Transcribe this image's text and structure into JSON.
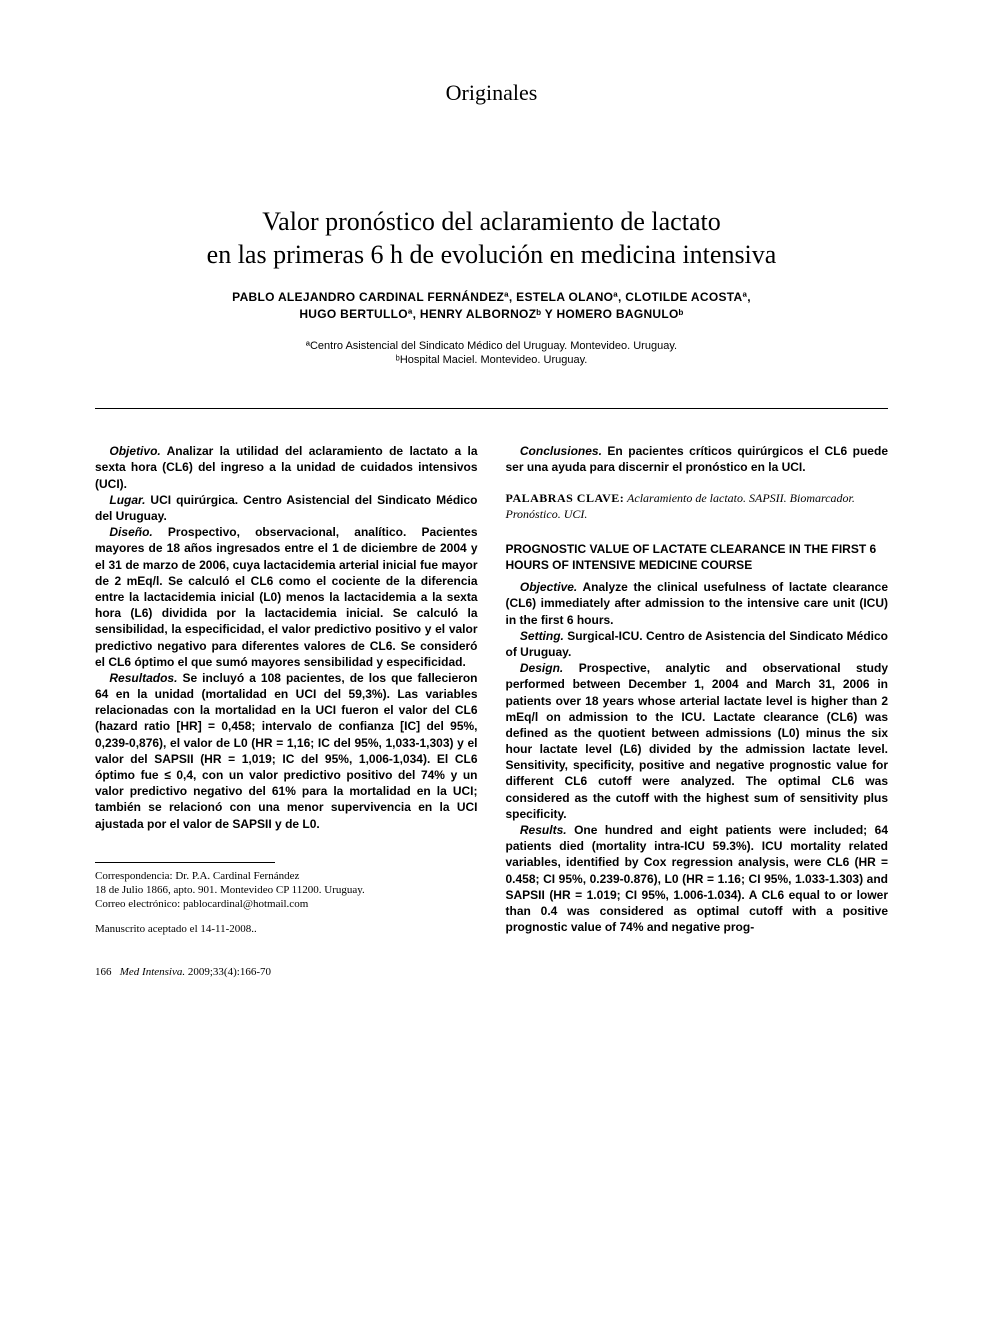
{
  "section_label": "Originales",
  "title_line1": "Valor pronóstico del aclaramiento de lactato",
  "title_line2": "en las primeras 6 h de evolución en medicina intensiva",
  "authors_line1": "PABLO ALEJANDRO CARDINAL FERNÁNDEZª, ESTELA OLANOª, CLOTILDE ACOSTAª,",
  "authors_line2": "HUGO BERTULLOª, HENRY ALBORNOZᵇ Y HOMERO BAGNULOᵇ",
  "affil_a": "ªCentro Asistencial del Sindicato Médico del Uruguay. Montevideo. Uruguay.",
  "affil_b": "ᵇHospital Maciel. Montevideo. Uruguay.",
  "es_abstract": {
    "objetivo": {
      "label": "Objetivo.",
      "text": " Analizar la utilidad del aclaramiento de lactato a la sexta hora (CL6) del ingreso a la unidad de cuidados intensivos (UCI)."
    },
    "lugar": {
      "label": "Lugar.",
      "text": " UCI quirúrgica. Centro Asistencial del Sindicato Médico del Uruguay."
    },
    "diseno": {
      "label": "Diseño.",
      "text": " Prospectivo, observacional, analítico. Pacientes mayores de 18 años ingresados entre el 1 de diciembre de 2004 y el 31 de marzo de 2006, cuya lactacidemia arterial inicial fue mayor de 2 mEq/l. Se calculó el CL6 como el cociente de la diferencia entre la lactacidemia inicial (L0) menos la lactacidemia a la sexta hora (L6) dividida por la lactacidemia inicial. Se calculó la sensibilidad, la especificidad, el valor predictivo positivo y el valor predictivo negativo para diferentes valores de CL6. Se consideró el CL6 óptimo el que sumó mayores sensibilidad y especificidad."
    },
    "resultados": {
      "label": "Resultados.",
      "text": " Se incluyó a 108 pacientes, de los que fallecieron 64 en la unidad (mortalidad en UCI del 59,3%). Las variables relacionadas con la mortalidad en la UCI fueron el valor del CL6 (hazard ratio [HR] = 0,458; intervalo de confianza [IC] del 95%, 0,239-0,876), el valor de L0 (HR = 1,16; IC del 95%, 1,033-1,303) y el valor del SAPSII (HR = 1,019; IC del 95%, 1,006-1,034). El CL6 óptimo fue ≤ 0,4, con un valor predictivo positivo del 74% y un valor predictivo negativo del 61% para la mortalidad en la UCI; también se relacionó con una menor supervivencia en la UCI ajustada por el valor de SAPSII y de L0."
    },
    "conclusiones": {
      "label": "Conclusiones.",
      "text": " En pacientes críticos quirúrgicos el CL6 puede ser una ayuda para discernir el pronóstico en la UCI."
    }
  },
  "keywords_label": "PALABRAS CLAVE:",
  "keywords_values": " Aclaramiento de lactato. SAPSII. Biomarcador. Pronóstico. UCI.",
  "en_title": "PROGNOSTIC VALUE OF LACTATE CLEARANCE IN THE FIRST 6 HOURS OF INTENSIVE MEDICINE COURSE",
  "en_abstract": {
    "objective": {
      "label": "Objective.",
      "text": " Analyze the clinical usefulness of lactate clearance (CL6) immediately after admission to the intensive care unit (ICU) in the first 6 hours."
    },
    "setting": {
      "label": "Setting.",
      "text": " Surgical-ICU. Centro de Asistencia del Sindicato Médico of Uruguay."
    },
    "design": {
      "label": "Design.",
      "text": " Prospective, analytic and observational study performed between December 1, 2004 and March 31, 2006 in patients over 18 years whose arterial lactate level is higher than 2 mEq/l on admission to the ICU. Lactate clearance (CL6) was defined as the quotient between admissions (L0) minus the six hour lactate level (L6) divided by the admission lactate level. Sensitivity, specificity, positive and negative prognostic value for different CL6 cutoff were analyzed. The optimal CL6 was considered as the cutoff with the highest sum of sensitivity plus specificity."
    },
    "results": {
      "label": "Results.",
      "text": " One hundred and eight patients were included; 64 patients died (mortality intra-ICU 59.3%). ICU mortality related variables, identified by Cox regression analysis, were CL6 (HR = 0.458; CI 95%, 0.239-0.876), L0 (HR = 1.16; CI 95%, 1.033-1.303) and SAPSII (HR = 1.019; CI 95%, 1.006-1.034). A CL6 equal to or lower than 0.4 was considered as optimal cutoff with a positive prognostic value of 74% and negative prog-"
    }
  },
  "correspondence": {
    "line1": "Correspondencia: Dr. P.A. Cardinal Fernández",
    "line2": "18 de Julio 1866, apto. 901. Montevideo CP 11200. Uruguay.",
    "line3": "Correo electrónico: pablocardinal@hotmail.com"
  },
  "manuscript": "Manuscrito aceptado el 14-11-2008..",
  "footer": {
    "page": "166",
    "journal": "Med Intensiva.",
    "citation": " 2009;33(4):166-70"
  }
}
